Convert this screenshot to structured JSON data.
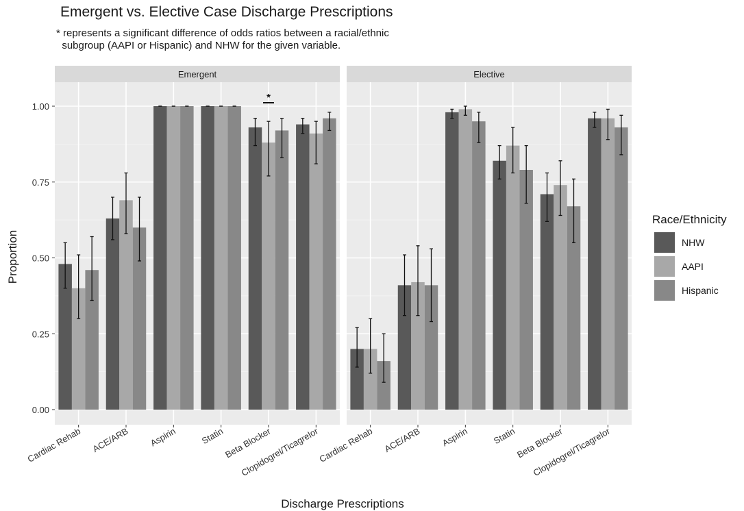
{
  "chart_data": {
    "type": "bar",
    "title": "Emergent vs. Elective Case Discharge Prescriptions",
    "subtitle": "* represents a significant difference of odds ratios between a racial/ethnic\n  subgroup (AAPI or Hispanic) and NHW for the given variable.",
    "xlabel": "Discharge Prescriptions",
    "ylabel": "Proportion",
    "ylim": [
      0,
      1.07
    ],
    "yticks": [
      "0.00",
      "0.25",
      "0.50",
      "0.75",
      "1.00"
    ],
    "categories": [
      "Cardiac Rehab",
      "ACE/ARB",
      "Aspirin",
      "Statin",
      "Beta Blocker",
      "Clopidogrel/Ticagrelor"
    ],
    "legend": {
      "title": "Race/Ethnicity",
      "position": "right",
      "entries": [
        "NHW",
        "AAPI",
        "Hispanic"
      ],
      "colors": [
        "#595959",
        "#a8a8a8",
        "#888888"
      ]
    },
    "significance_marker": "*",
    "panels": [
      {
        "name": "Emergent",
        "series": [
          {
            "name": "NHW",
            "values": [
              0.48,
              0.63,
              1.0,
              1.0,
              0.93,
              0.94
            ],
            "error_low": [
              0.4,
              0.56,
              1.0,
              1.0,
              0.87,
              0.91
            ],
            "error_high": [
              0.55,
              0.7,
              1.0,
              1.0,
              0.96,
              0.96
            ]
          },
          {
            "name": "AAPI",
            "values": [
              0.4,
              0.69,
              1.0,
              1.0,
              0.88,
              0.91
            ],
            "error_low": [
              0.3,
              0.58,
              1.0,
              1.0,
              0.77,
              0.81
            ],
            "error_high": [
              0.51,
              0.78,
              1.0,
              1.0,
              0.95,
              0.95
            ]
          },
          {
            "name": "Hispanic",
            "values": [
              0.46,
              0.6,
              1.0,
              1.0,
              0.92,
              0.96
            ],
            "error_low": [
              0.36,
              0.49,
              1.0,
              1.0,
              0.83,
              0.92
            ],
            "error_high": [
              0.57,
              0.7,
              1.0,
              1.0,
              0.96,
              0.98
            ]
          }
        ],
        "significant_categories": [
          "Beta Blocker"
        ]
      },
      {
        "name": "Elective",
        "series": [
          {
            "name": "NHW",
            "values": [
              0.2,
              0.41,
              0.98,
              0.82,
              0.71,
              0.96
            ],
            "error_low": [
              0.14,
              0.31,
              0.96,
              0.76,
              0.62,
              0.93
            ],
            "error_high": [
              0.27,
              0.51,
              0.99,
              0.87,
              0.78,
              0.98
            ]
          },
          {
            "name": "AAPI",
            "values": [
              0.2,
              0.42,
              0.99,
              0.87,
              0.74,
              0.96
            ],
            "error_low": [
              0.12,
              0.31,
              0.97,
              0.78,
              0.64,
              0.89
            ],
            "error_high": [
              0.3,
              0.54,
              1.0,
              0.93,
              0.82,
              0.99
            ]
          },
          {
            "name": "Hispanic",
            "values": [
              0.16,
              0.41,
              0.95,
              0.79,
              0.67,
              0.93
            ],
            "error_low": [
              0.09,
              0.29,
              0.88,
              0.68,
              0.55,
              0.84
            ],
            "error_high": [
              0.25,
              0.53,
              0.98,
              0.87,
              0.76,
              0.97
            ]
          }
        ],
        "significant_categories": []
      }
    ]
  }
}
